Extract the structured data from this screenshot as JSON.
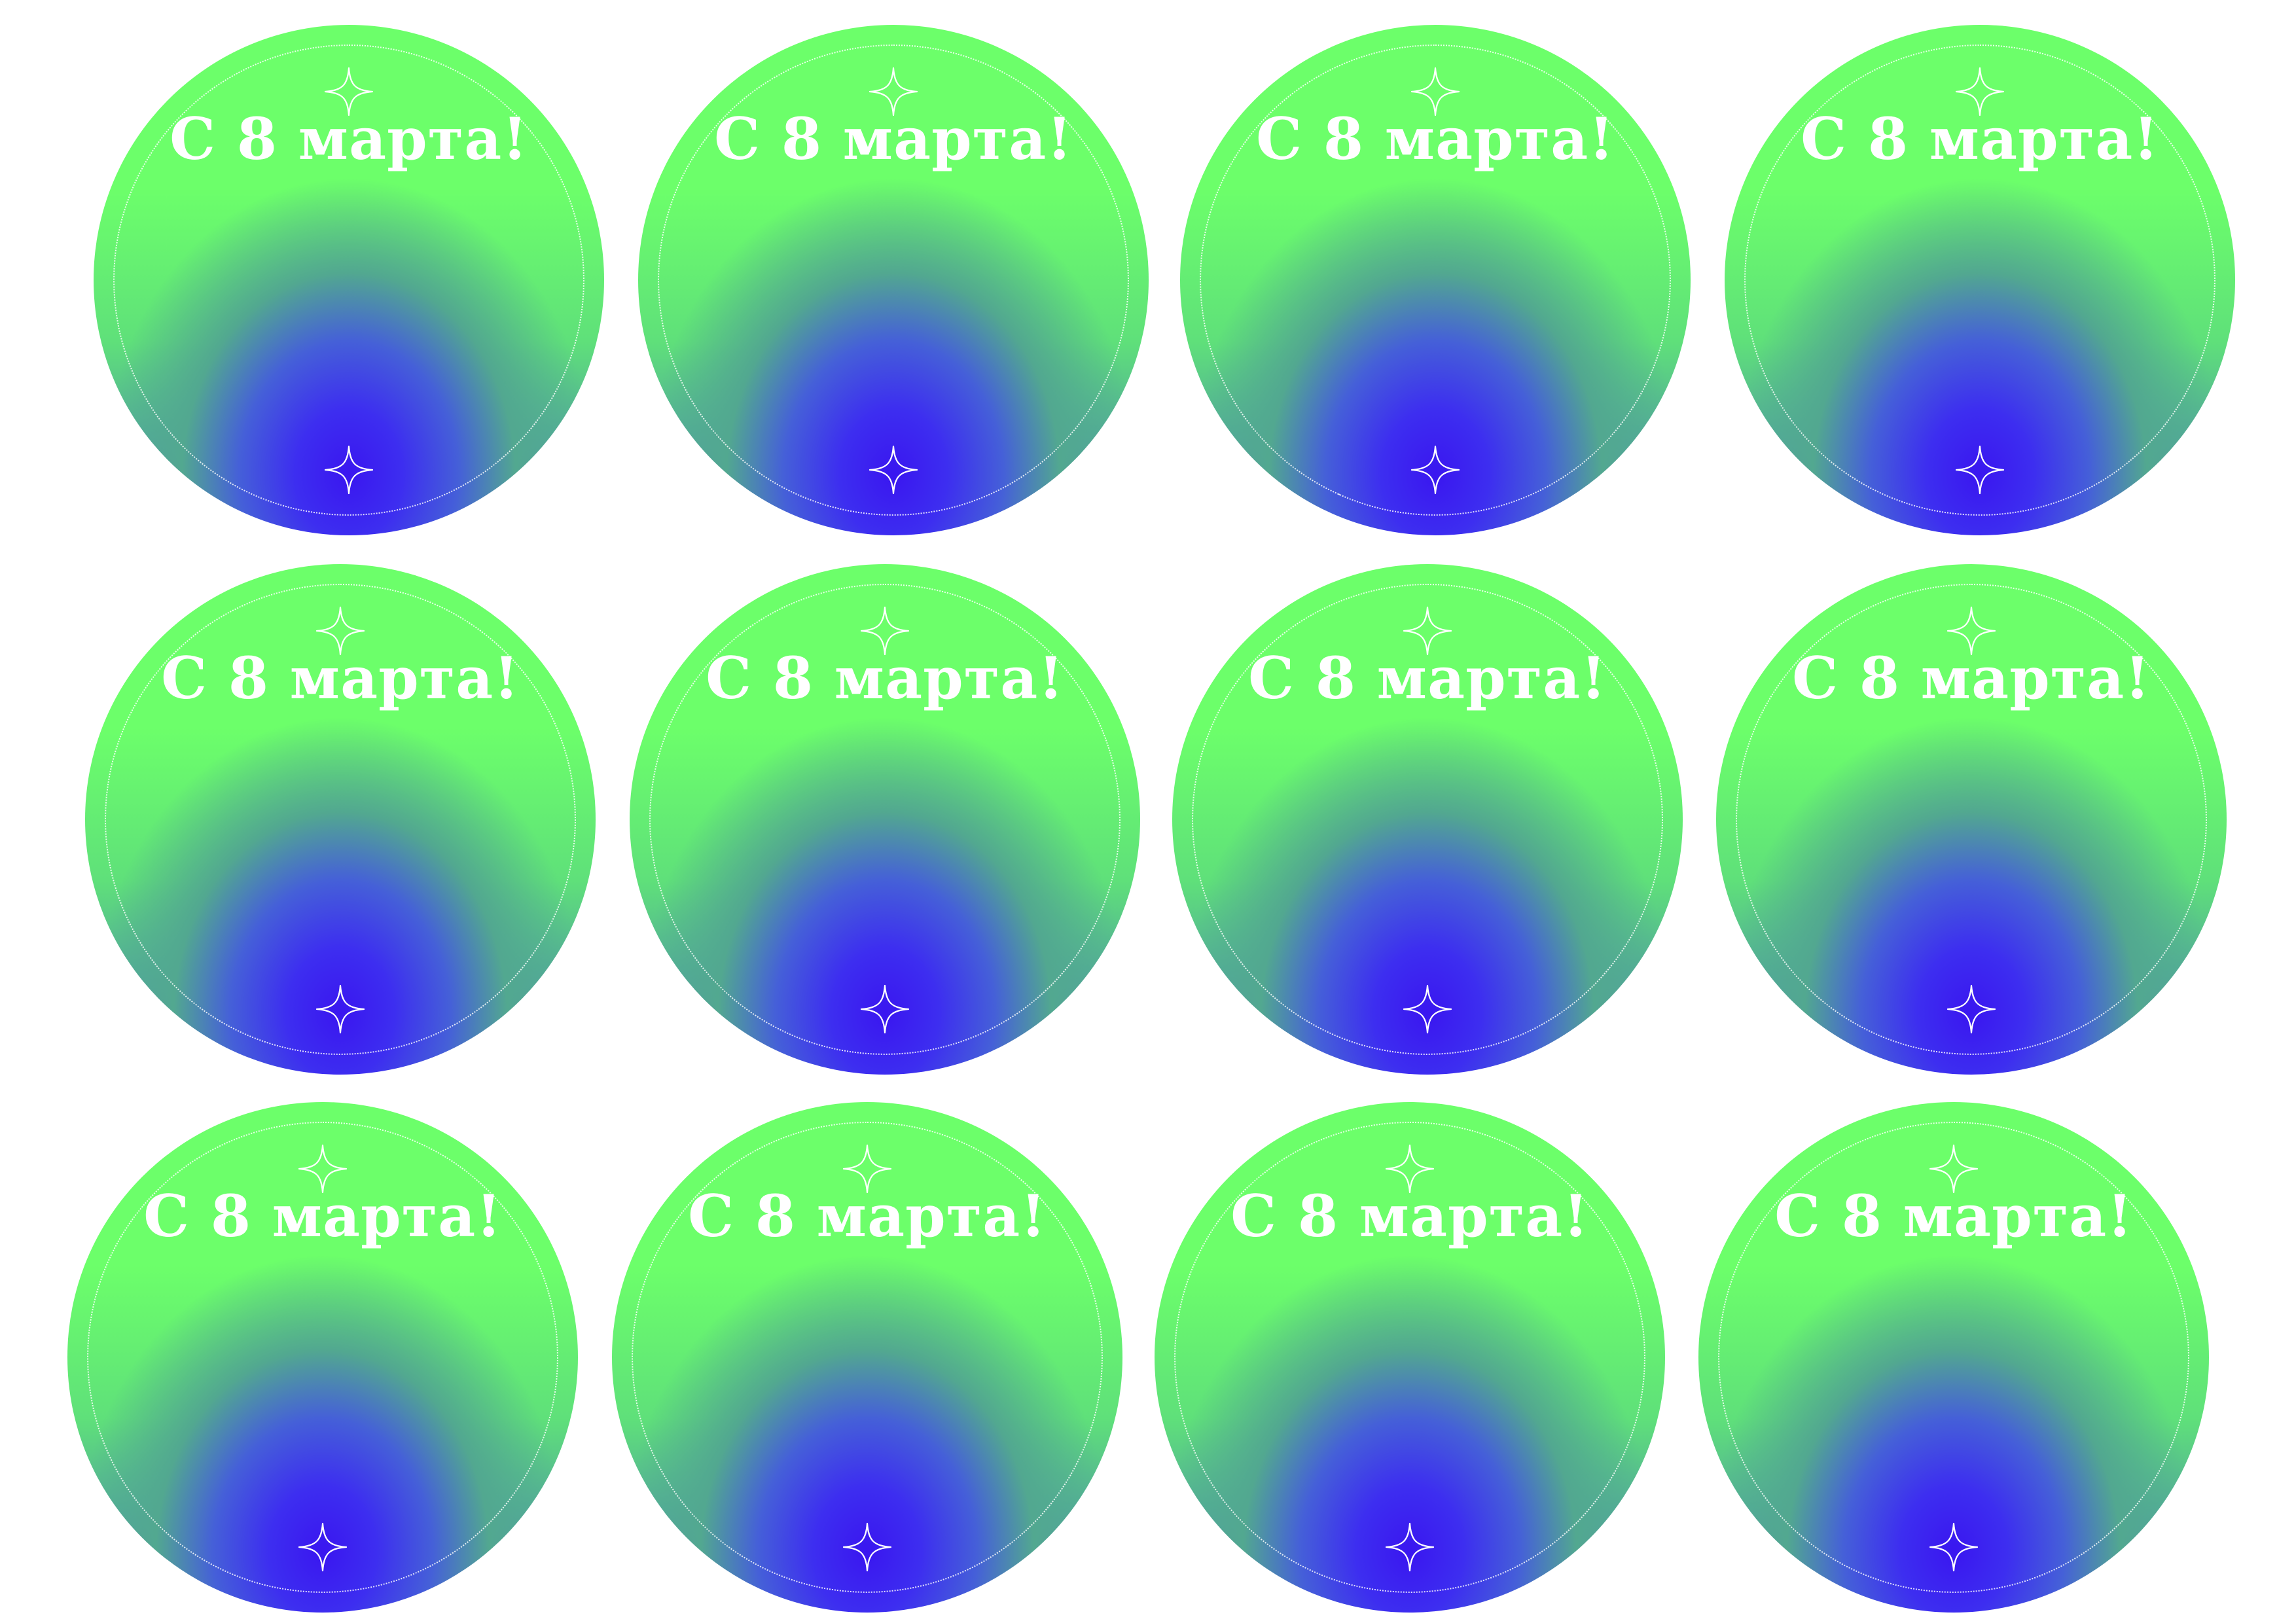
{
  "sheet": {
    "stickers": [
      {
        "text": "С 8 марта!",
        "top_icon": "sparkle-icon",
        "bottom_icon": "sparkle-icon"
      },
      {
        "text": "С 8 марта!",
        "top_icon": "sparkle-icon",
        "bottom_icon": "sparkle-icon"
      },
      {
        "text": "С 8 марта!",
        "top_icon": "sparkle-icon",
        "bottom_icon": "sparkle-icon"
      },
      {
        "text": "С 8 марта!",
        "top_icon": "sparkle-icon",
        "bottom_icon": "sparkle-icon"
      },
      {
        "text": "С 8 марта!",
        "top_icon": "sparkle-icon",
        "bottom_icon": "sparkle-icon"
      },
      {
        "text": "С 8 марта!",
        "top_icon": "sparkle-icon",
        "bottom_icon": "sparkle-icon"
      },
      {
        "text": "С 8 марта!",
        "top_icon": "sparkle-icon",
        "bottom_icon": "sparkle-icon"
      },
      {
        "text": "С 8 марта!",
        "top_icon": "sparkle-icon",
        "bottom_icon": "sparkle-icon"
      },
      {
        "text": "С 8 марта!",
        "top_icon": "sparkle-icon",
        "bottom_icon": "sparkle-icon"
      },
      {
        "text": "С 8 марта!",
        "top_icon": "sparkle-icon",
        "bottom_icon": "sparkle-icon"
      },
      {
        "text": "С 8 марта!",
        "top_icon": "sparkle-icon",
        "bottom_icon": "sparkle-icon"
      },
      {
        "text": "С 8 марта!",
        "top_icon": "sparkle-icon",
        "bottom_icon": "sparkle-icon"
      }
    ]
  },
  "colors": {
    "page_background": "#ffffff",
    "gradient_top_green": "#6cff6a",
    "gradient_bottom_blue": "#3a16f0",
    "text_white": "#ffffff"
  }
}
